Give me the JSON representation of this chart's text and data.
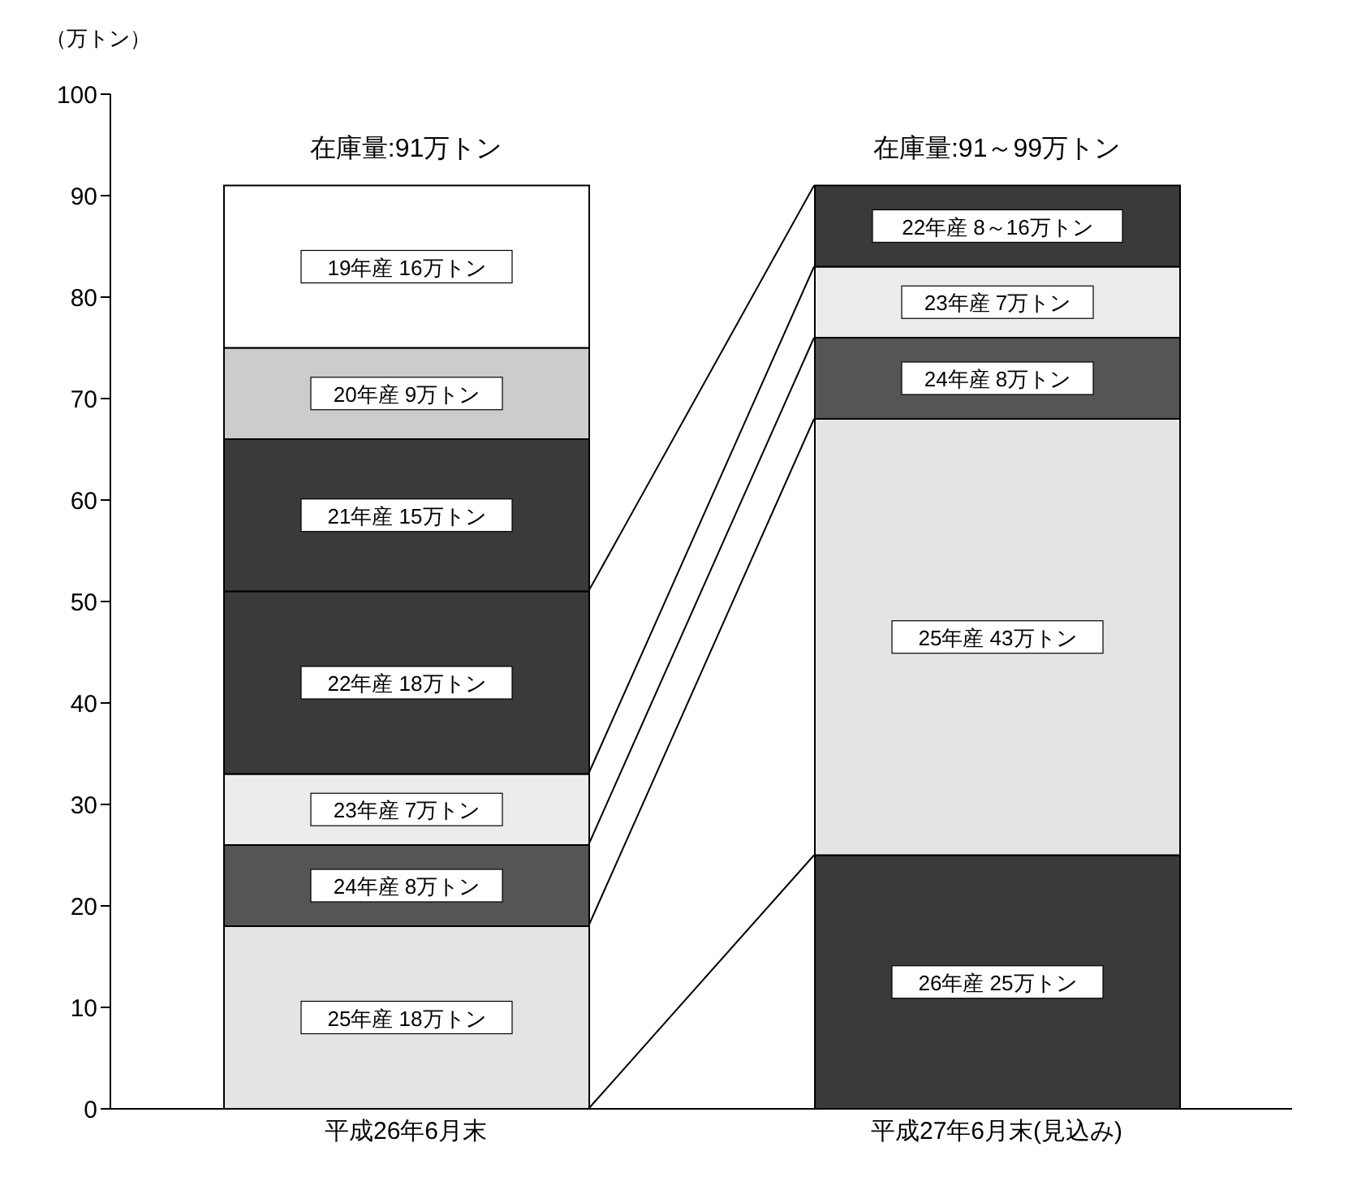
{
  "chart_data": {
    "type": "bar",
    "stacked": true,
    "ylabel": "（万トン）",
    "categories": [
      "平成26年6月末",
      "平成27年6月末(見込み)"
    ],
    "ylim": [
      0,
      100
    ],
    "yticks": [
      0,
      10,
      20,
      30,
      40,
      50,
      60,
      70,
      80,
      90,
      100
    ],
    "totals": [
      "在庫量:91万トン",
      "在庫量:91～99万トン"
    ],
    "series": [
      {
        "color": "#3a3a3a",
        "values": [
          null,
          25
        ],
        "value_labels": [
          null,
          "26年産 25万トン"
        ]
      },
      {
        "color": "#e4e4e4",
        "values": [
          18,
          43
        ],
        "value_labels": [
          "25年産 18万トン",
          "25年産 43万トン"
        ]
      },
      {
        "color": "#555555",
        "values": [
          8,
          8
        ],
        "value_labels": [
          "24年産 8万トン",
          "24年産 8万トン"
        ]
      },
      {
        "color": "#ececec",
        "values": [
          7,
          7
        ],
        "value_labels": [
          "23年産 7万トン",
          "23年産 7万トン"
        ]
      },
      {
        "color": "#3a3a3a",
        "values": [
          18,
          8
        ],
        "value_labels": [
          "22年産 18万トン",
          "22年産 8～16万トン"
        ]
      },
      {
        "color": "#3a3a3a",
        "values": [
          15,
          null
        ],
        "value_labels": [
          "21年産 15万トン",
          null
        ]
      },
      {
        "color": "#cccccc",
        "values": [
          9,
          null
        ],
        "value_labels": [
          "20年産 9万トン",
          null
        ]
      },
      {
        "color": "#ffffff",
        "values": [
          16,
          null
        ],
        "value_labels": [
          "19年産 16万トン",
          null
        ]
      }
    ]
  }
}
